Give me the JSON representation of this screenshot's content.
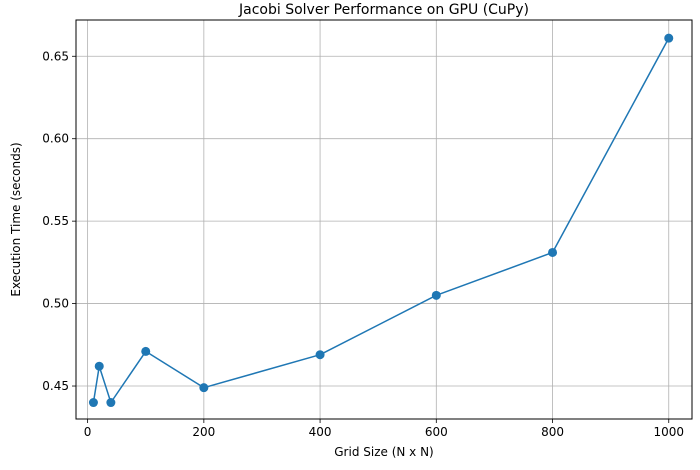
{
  "chart_data": {
    "type": "line",
    "title": "Jacobi Solver Performance on GPU (CuPy)",
    "xlabel": "Grid Size (N x N)",
    "ylabel": "Execution Time (seconds)",
    "xlim": [
      -20,
      1040
    ],
    "ylim": [
      0.43,
      0.672
    ],
    "xticks": [
      0,
      200,
      400,
      600,
      800,
      1000
    ],
    "xtick_labels": [
      "0",
      "200",
      "400",
      "600",
      "800",
      "1000"
    ],
    "yticks": [
      0.45,
      0.5,
      0.55,
      0.6,
      0.65
    ],
    "ytick_labels": [
      "0.45",
      "0.50",
      "0.55",
      "0.60",
      "0.65"
    ],
    "grid": true,
    "series": [
      {
        "color": "#1f77b4",
        "marker": "circle",
        "x": [
          10,
          20,
          40,
          100,
          200,
          400,
          600,
          800,
          1000
        ],
        "y": [
          0.44,
          0.462,
          0.44,
          0.471,
          0.449,
          0.469,
          0.505,
          0.531,
          0.661
        ]
      }
    ]
  }
}
